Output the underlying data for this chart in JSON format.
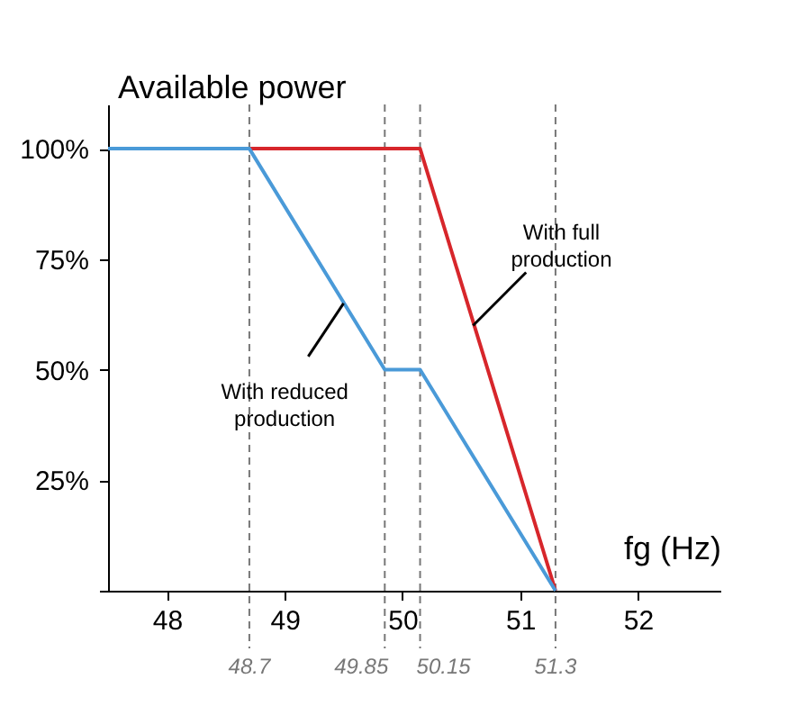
{
  "chart_data": {
    "type": "line",
    "xlabel": "fg (Hz)",
    "ylabel": "Available power",
    "xlim": [
      47.5,
      52.7
    ],
    "xticks": [
      48,
      49,
      50,
      51,
      52
    ],
    "ylim": [
      0,
      110
    ],
    "yticks": [
      {
        "value": 0,
        "label": null
      },
      {
        "value": 25,
        "label": "25%"
      },
      {
        "value": 50,
        "label": "50%"
      },
      {
        "value": 75,
        "label": "75%"
      },
      {
        "value": 100,
        "label": "100%"
      }
    ],
    "series": [
      {
        "color": "#d7262b",
        "x": [
          48.7,
          50.15,
          51.3
        ],
        "values": [
          100,
          100,
          0
        ]
      },
      {
        "color": "#4a9ad8",
        "x": [
          47.5,
          48.7,
          49.85,
          50.15,
          51.3
        ],
        "values": [
          100,
          100,
          50,
          50,
          0
        ]
      }
    ],
    "ref_lines": [
      {
        "axis": "x",
        "value": 48.7,
        "label": "48.7",
        "color": "#777777",
        "line_style": "dashed"
      },
      {
        "axis": "x",
        "value": 49.85,
        "label": "49.85",
        "color": "#777777",
        "line_style": "dashed"
      },
      {
        "axis": "x",
        "value": 50.15,
        "label": "50.15",
        "color": "#777777",
        "line_style": "dashed"
      },
      {
        "axis": "x",
        "value": 51.3,
        "label": "51.3",
        "color": "#777777",
        "line_style": "dashed"
      }
    ],
    "annotations": [
      {
        "text": "With full production",
        "x": 50.6,
        "y": 60
      },
      {
        "text": "With reduced production",
        "x": 49.5,
        "y": 65
      }
    ],
    "grid": false,
    "marker": "none",
    "line_style": "solid"
  }
}
